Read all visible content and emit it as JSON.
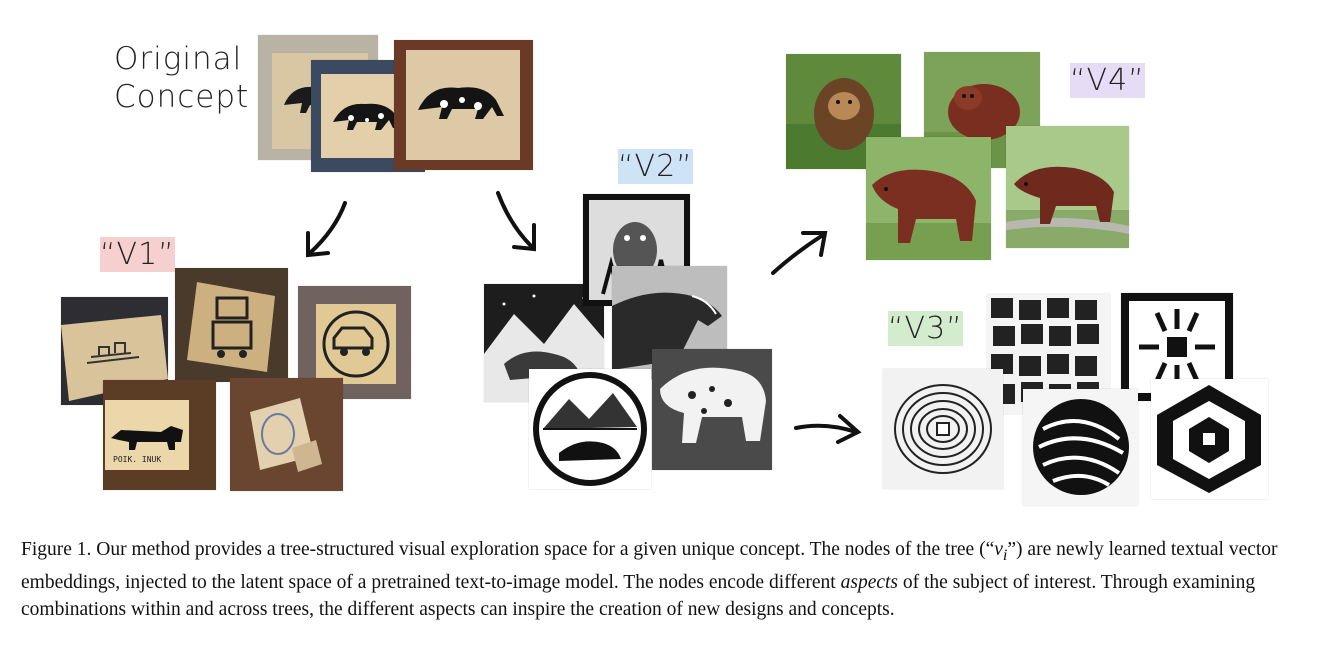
{
  "figure": {
    "original_label_line1": "Original",
    "original_label_line2": "Concept",
    "node_labels": {
      "v1": "“V1”",
      "v2": "“V2”",
      "v3": "“V3”",
      "v4": "“V4”"
    },
    "stamp_text": "POIK. INUK"
  },
  "caption": {
    "part1": "Figure 1. Our method provides a tree-structured visual exploration space for a given unique concept. The nodes of the tree (“",
    "math_v": "v",
    "math_i": "i",
    "part2": "”) are newly learned textual vector embeddings, injected to the latent space of a pretrained text-to-image model. The nodes encode different ",
    "italic_word": "aspects",
    "part3": " of the subject of interest. Through examining combinations within and across trees, the different aspects can inspire the creation of new designs and concepts."
  },
  "colors": {
    "v1_highlight": "#f6d0cf",
    "v2_highlight": "#cfe3f7",
    "v3_highlight": "#d3eccd",
    "v4_highlight": "#e7dcf6"
  }
}
